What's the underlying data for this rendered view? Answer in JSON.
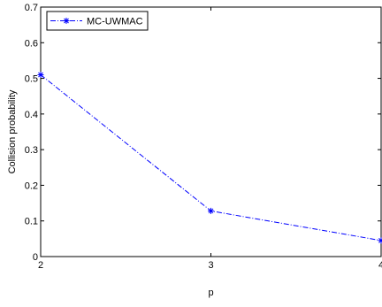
{
  "chart_data": {
    "type": "line",
    "xlabel": "p",
    "ylabel": "Collision probability",
    "xlim": [
      2,
      4
    ],
    "ylim": [
      0,
      0.7
    ],
    "xticks": [
      "2",
      "3",
      "4"
    ],
    "yticks": [
      "0",
      "0.1",
      "0.2",
      "0.3",
      "0.4",
      "0.5",
      "0.6",
      "0.7"
    ],
    "grid": false,
    "legend_position": "top-left",
    "series": [
      {
        "name": "MC-UWMAC",
        "x": [
          2,
          3,
          4
        ],
        "values": [
          0.51,
          0.128,
          0.045
        ],
        "color": "#0000ff",
        "line_style": "dash-dot",
        "marker": "asterisk"
      }
    ]
  }
}
